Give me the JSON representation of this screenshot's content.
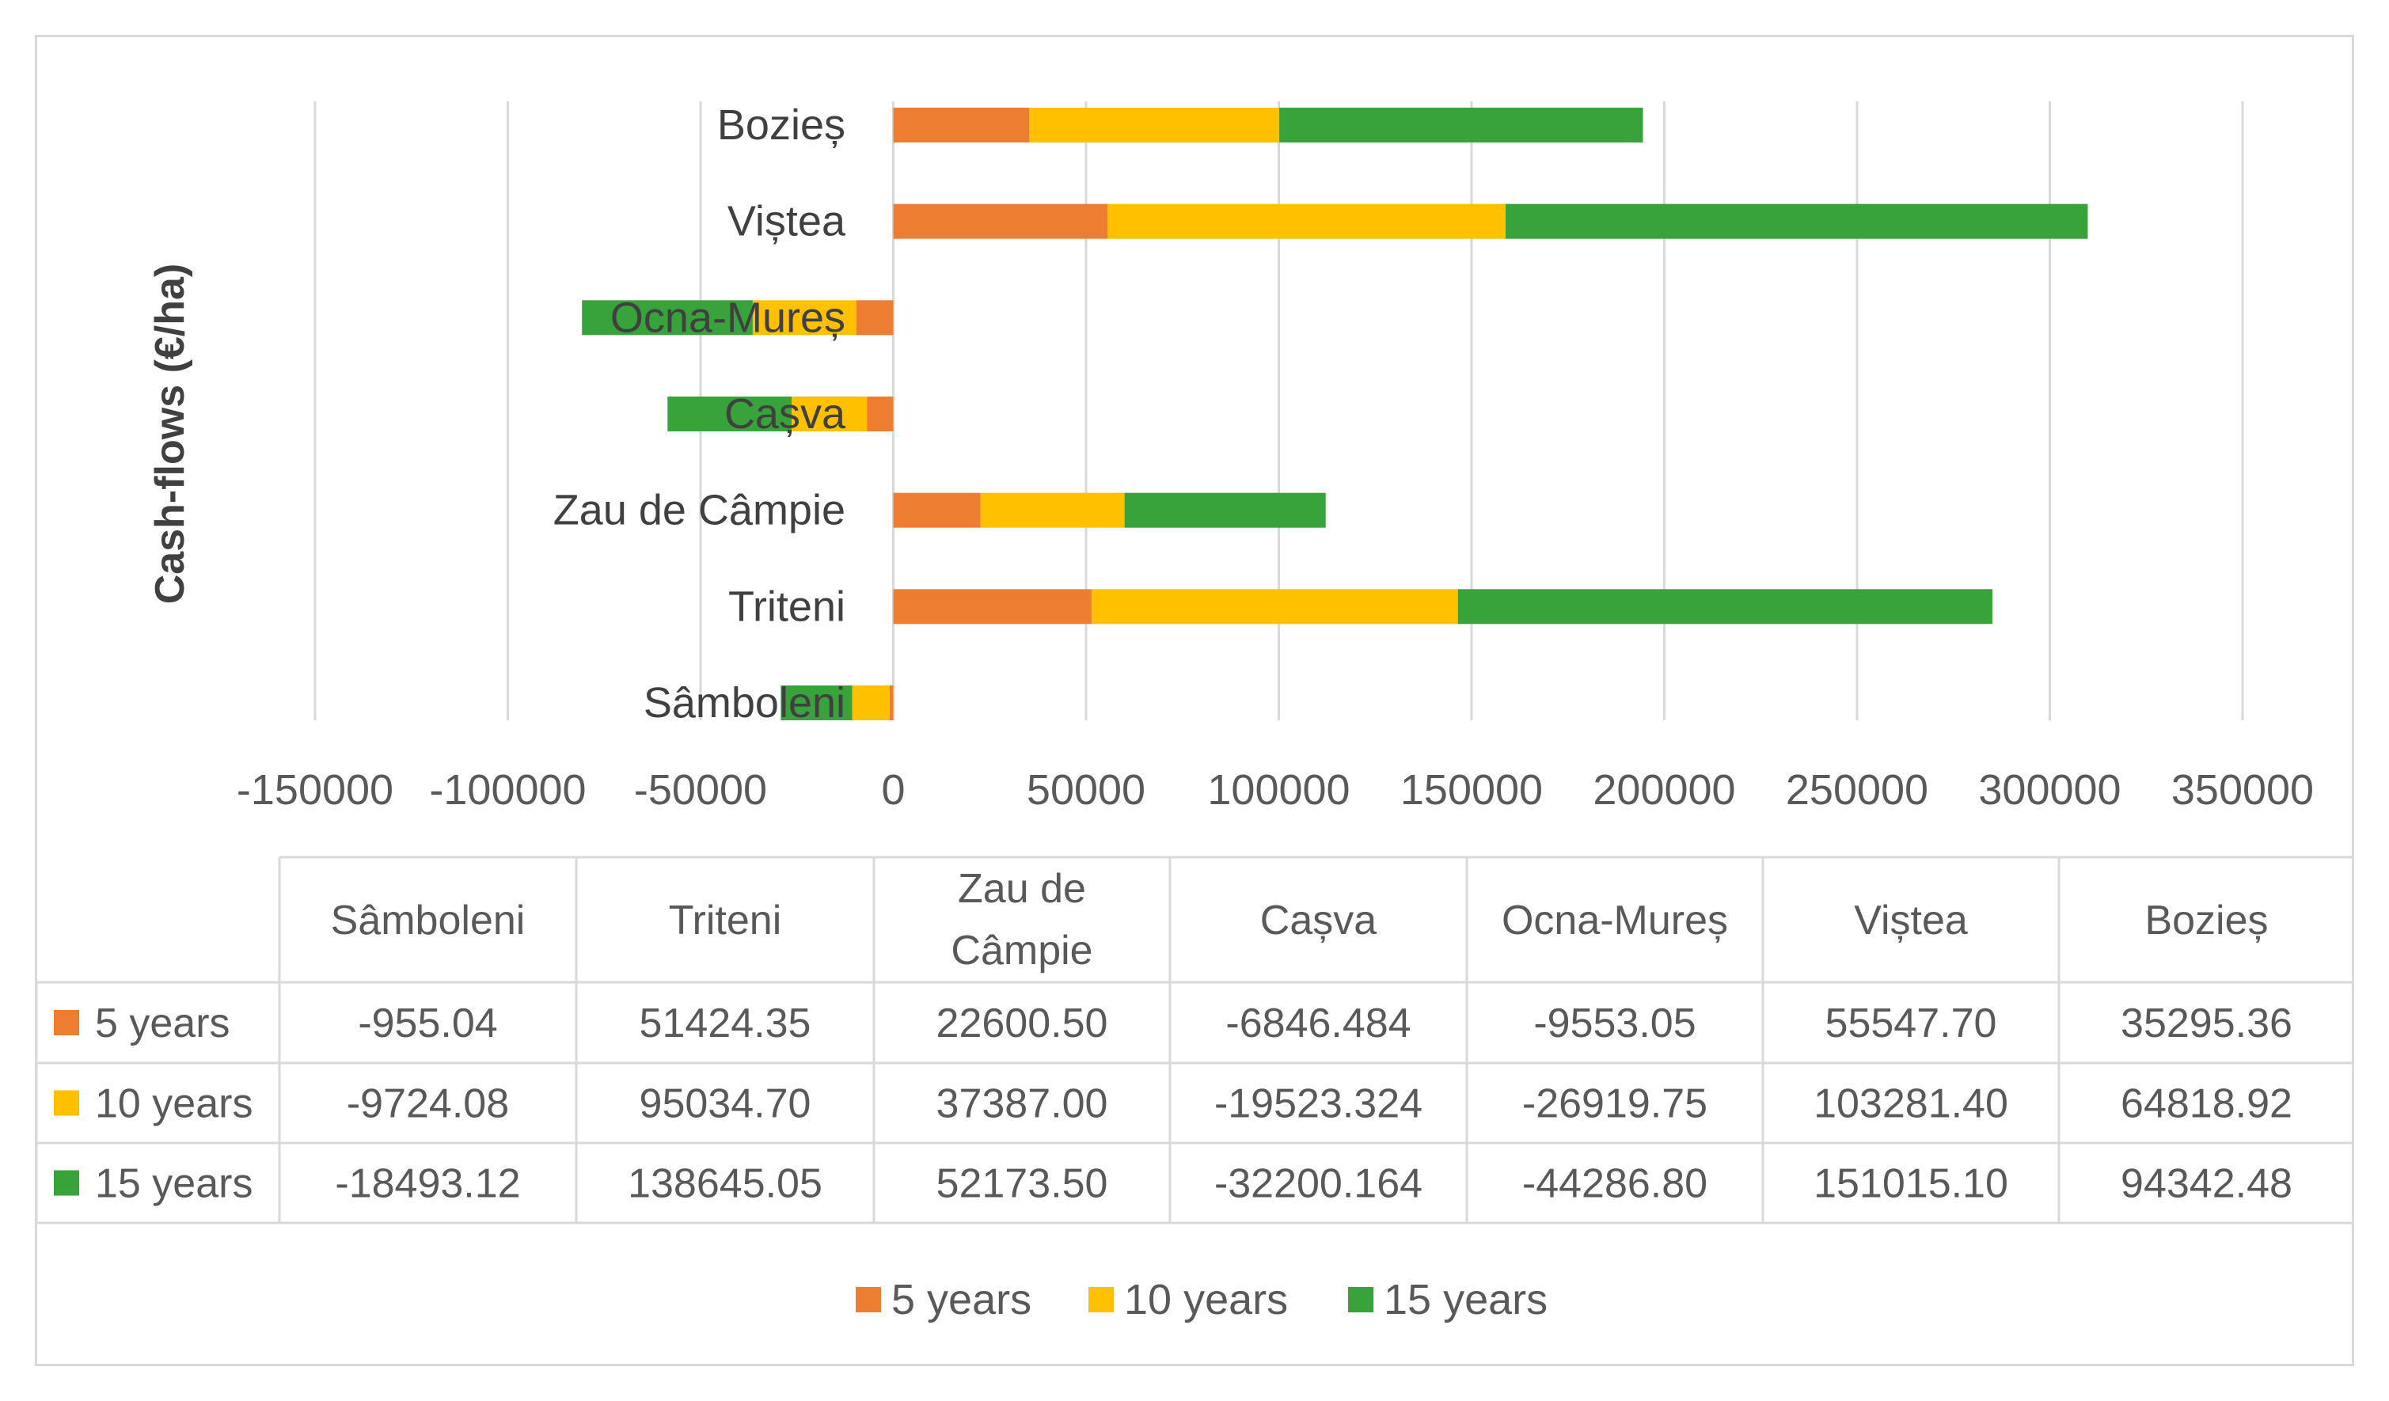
{
  "chart_data": {
    "type": "bar",
    "orientation": "horizontal",
    "stacked": true,
    "ylabel": "Cash-flows (€/ha)",
    "categories": [
      "Sâmboleni",
      "Triteni",
      "Zau de Câmpie",
      "Cașva",
      "Ocna-Mureș",
      "Viștea",
      "Bozieș"
    ],
    "series": [
      {
        "name": "5 years",
        "color": "#ed7d31",
        "values": [
          -955.04,
          51424.35,
          22600.5,
          -6846.484,
          -9553.05,
          55547.7,
          35295.36
        ],
        "labels": [
          "-955.04",
          "51424.35",
          "22600.50",
          "-6846.484",
          "-9553.05",
          "55547.70",
          "35295.36"
        ]
      },
      {
        "name": "10 years",
        "color": "#ffc000",
        "values": [
          -9724.08,
          95034.7,
          37387.0,
          -19523.324,
          -26919.75,
          103281.4,
          64818.92
        ],
        "labels": [
          "-9724.08",
          "95034.70",
          "37387.00",
          "-19523.324",
          "-26919.75",
          "103281.40",
          "64818.92"
        ]
      },
      {
        "name": "15 years",
        "color": "#38a33a",
        "values": [
          -18493.12,
          138645.05,
          52173.5,
          -32200.164,
          -44286.8,
          151015.1,
          94342.48
        ],
        "labels": [
          "-18493.12",
          "138645.05",
          "52173.50",
          "-32200.164",
          "-44286.80",
          "151015.10",
          "94342.48"
        ]
      }
    ],
    "xlim": [
      -150000,
      350000
    ],
    "xticks": [
      -150000,
      -100000,
      -50000,
      0,
      50000,
      100000,
      150000,
      200000,
      250000,
      300000,
      350000
    ],
    "xtick_labels": [
      "-150000",
      "-100000",
      "-50000",
      "0",
      "50000",
      "100000",
      "150000",
      "200000",
      "250000",
      "300000",
      "350000"
    ],
    "grid": true,
    "data_table": true,
    "table_header": [
      "Sâmboleni",
      "Triteni",
      "Zau de\nCâmpie",
      "Cașva",
      "Ocna-Mureș",
      "Viștea",
      "Bozieș"
    ],
    "legend": [
      "5 years",
      "10 years",
      "15 years"
    ],
    "legend_position": "bottom"
  }
}
